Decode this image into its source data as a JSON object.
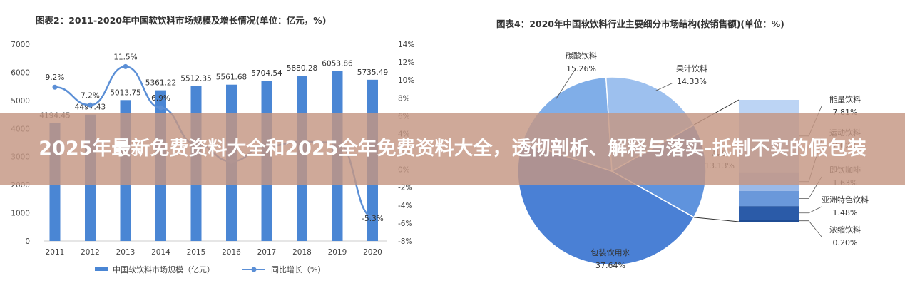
{
  "banner": {
    "title": "2025年最新免费资料大全和2025全年免费资料大全，透彻剖析、解释与落实-抵制不实的假包装"
  },
  "chart_data": [
    {
      "type": "bar",
      "title": "图表2：2011-2020年中国软饮料市场规模及增长情况(单位：亿元，%)",
      "categories": [
        "2011",
        "2012",
        "2013",
        "2014",
        "2015",
        "2016",
        "2017",
        "2018",
        "2019",
        "2020"
      ],
      "series": [
        {
          "name": "中国软饮料市场规模（亿元）",
          "type": "bar",
          "axis": "left",
          "values": [
            4194.45,
            4497.43,
            5013.75,
            5361.22,
            5512.35,
            5561.68,
            5704.54,
            5880.28,
            6053.86,
            5735.49
          ],
          "labels": [
            "4194.45",
            "4497.43",
            "5013.75",
            "5361.22",
            "5512.35",
            "5561.68",
            "5704.54",
            "5880.28",
            "6053.86",
            "5735.49"
          ]
        },
        {
          "name": "同比增长（%）",
          "type": "line",
          "axis": "right",
          "values": [
            9.2,
            7.2,
            11.5,
            6.9,
            2.8,
            0.9,
            2.6,
            3.1,
            3.0,
            -5.3
          ],
          "labels": [
            "9.2%",
            "7.2%",
            "11.5%",
            "6.9%",
            "",
            "",
            "",
            "",
            "",
            "-5.3%"
          ]
        }
      ],
      "y_left": {
        "min": 0,
        "max": 7000,
        "ticks": [
          "0",
          "1000",
          "2000",
          "3000",
          "4000",
          "5000",
          "6000",
          "7000"
        ]
      },
      "y_right": {
        "min": -8,
        "max": 14,
        "ticks": [
          "-8%",
          "-6%",
          "-4%",
          "-2%",
          "0%",
          "2%",
          "4%",
          "6%",
          "8%",
          "10%",
          "12%",
          "14%"
        ]
      },
      "legend_position": "bottom",
      "colors": {
        "bar": "#4a86d4",
        "line": "#5b8fd6",
        "title": "#333333"
      }
    },
    {
      "type": "pie",
      "title": "图表4：2020年中国软饮料行业主要细分市场结构(按销售额)(单位：%)",
      "slices": [
        {
          "name": "碳酸饮料",
          "pct": "15.26%",
          "value": 15.26,
          "color": "#80aee8"
        },
        {
          "name": "果汁饮料",
          "pct": "14.33%",
          "value": 14.33,
          "color": "#9dc0ee"
        },
        {
          "name": "其他",
          "pct": "13.13%",
          "value": 13.13,
          "color": "#5f93dd",
          "expanded": true
        },
        {
          "name": "包装饮用水",
          "pct": "37.64%",
          "value": 37.64,
          "color": "#4a80d5"
        }
      ],
      "breakdown_of": "其他",
      "breakdown": [
        {
          "name": "能量饮料",
          "pct": "7.81%",
          "value": 7.81,
          "color": "#bcd4f4"
        },
        {
          "name": "运动饮料",
          "pct": "2.02%",
          "value": 2.02,
          "color": "#9ab9e8"
        },
        {
          "name": "即饮咖啡",
          "pct": "1.63%",
          "value": 1.63,
          "color": "#6a98da"
        },
        {
          "name": "亚洲特色饮料",
          "pct": "1.48%",
          "value": 1.48,
          "color": "#2b5ba8"
        },
        {
          "name": "浓缩饮料",
          "pct": "0.20%",
          "value": 0.2,
          "color": "#1f4c94"
        }
      ]
    }
  ]
}
